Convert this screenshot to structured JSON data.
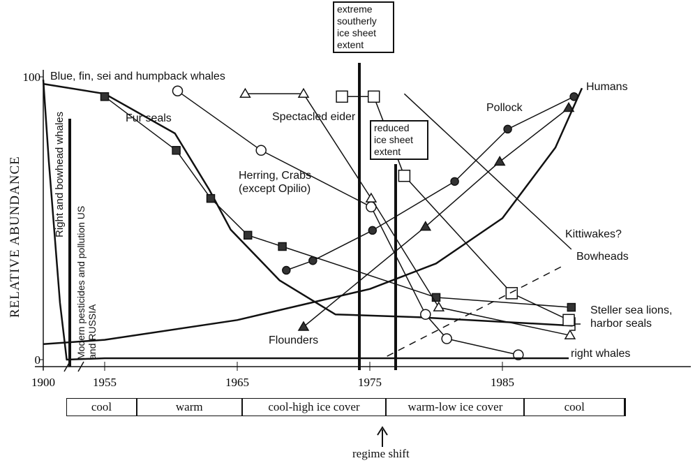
{
  "chart_data": {
    "type": "line",
    "y_label": "RELATIVE ABUNDANCE",
    "xlim": [
      1900,
      1993
    ],
    "xticks": [
      1900,
      1955,
      1965,
      1975,
      1985
    ],
    "axis_break": true,
    "ylim": [
      0,
      100
    ],
    "yticks": [
      0,
      100
    ],
    "series": [
      {
        "name": "Blue, fin, sei and humpback whales",
        "marker": "none",
        "color": "#111",
        "x": [
          1900,
          1955,
          1960.3,
          1962.9,
          1964.5,
          1968.2,
          1972.4,
          1978.7,
          1990.3
        ],
        "values": [
          97.5,
          94,
          80,
          60,
          46,
          28,
          16,
          15,
          12
        ]
      },
      {
        "name": "Fur seals",
        "marker": "filled-square",
        "color": "#111",
        "x": [
          1955,
          1960.4,
          1963,
          1965.8,
          1968.4,
          1980,
          1990.2
        ],
        "values": [
          93,
          74,
          57,
          44,
          40,
          22,
          18.5
        ]
      },
      {
        "name": "Herring, Crabs (except Opilio)",
        "marker": "open-circle",
        "color": "#111",
        "x": [
          1960.5,
          1966.8,
          1975.1,
          1979.2,
          1980.8,
          1986.2
        ],
        "values": [
          95,
          74,
          54,
          16,
          7.4,
          1.7
        ]
      },
      {
        "name": "Spectacled eider",
        "marker": "open-triangle",
        "color": "#111",
        "x": [
          1965.6,
          1970,
          1975.1,
          1980.2,
          1990.1
        ],
        "values": [
          94,
          94,
          57,
          18.5,
          8.6
        ]
      },
      {
        "name": "Steller sea lions, harbor seals",
        "marker": "open-square",
        "color": "#111",
        "x": [
          1972.9,
          1975.3,
          1977.6,
          1985.7,
          1990
        ],
        "values": [
          93,
          93,
          65,
          23.5,
          14
        ]
      },
      {
        "name": "Pollock",
        "marker": "filled-circle",
        "color": "#111",
        "x": [
          1968.7,
          1970.7,
          1975.2,
          1981.4,
          1985.4,
          1990.4
        ],
        "values": [
          31.6,
          35,
          45.7,
          63,
          81.5,
          93
        ]
      },
      {
        "name": "Flounders",
        "marker": "filled-triangle",
        "color": "#111",
        "x": [
          1970,
          1979.2,
          1984.8,
          1990
        ],
        "values": [
          11.6,
          47,
          70,
          89
        ]
      },
      {
        "name": "Humans",
        "marker": "none",
        "color": "#111",
        "x": [
          1900,
          1955,
          1965,
          1975,
          1980,
          1985,
          1989,
          1991
        ],
        "values": [
          5.5,
          7,
          14,
          25,
          34,
          50,
          75,
          96
        ]
      },
      {
        "name": "Kittiwakes?",
        "marker": "none",
        "color": "#111",
        "x": [
          1977.6,
          1990.2
        ],
        "values": [
          94,
          39
        ]
      },
      {
        "name": "Bowheads",
        "marker": "none",
        "dash": true,
        "color": "#111",
        "x": [
          1976.3,
          1989.5
        ],
        "values": [
          1.2,
          33
        ]
      },
      {
        "name": "Right and bowhead whales",
        "marker": "none",
        "color": "#111",
        "x": [
          1900,
          1905,
          1915,
          1921,
          1955,
          1990
        ],
        "values": [
          99,
          70,
          20,
          0,
          0.5,
          0.5
        ]
      }
    ],
    "annotations": [
      "extreme southerly ice sheet extent",
      "reduced ice sheet extent",
      "Modern pesticides and pollution US and RUSSIA",
      "right whales",
      "regime shift"
    ],
    "periods": [
      "cool",
      "warm",
      "cool-high ice cover",
      "warm-low ice cover",
      "cool"
    ]
  }
}
